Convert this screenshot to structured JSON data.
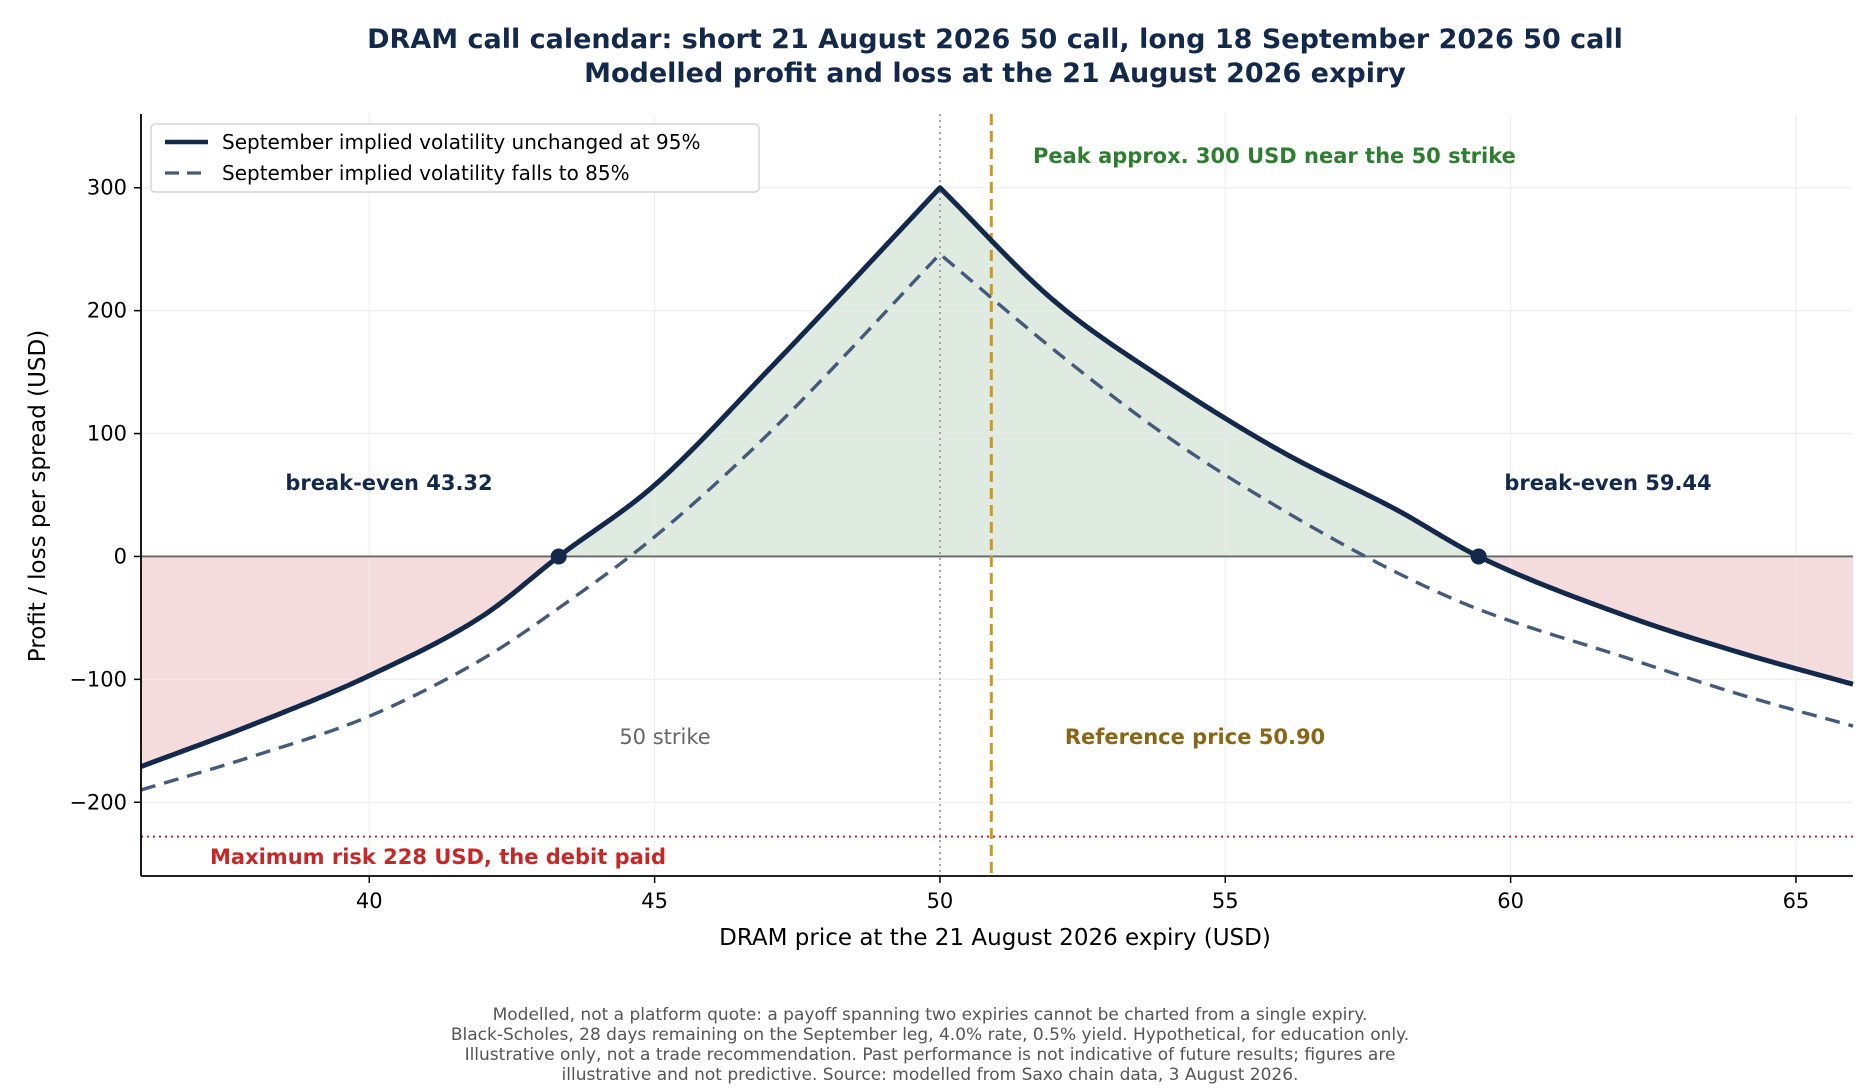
{
  "chart_data": {
    "type": "line",
    "title_lines": [
      "DRAM call calendar: short 21 August 2026 50 call, long 18 September 2026 50 call",
      "Modelled profit and loss at the 21 August 2026 expiry"
    ],
    "xlabel": "DRAM price at the 21 August 2026 expiry (USD)",
    "ylabel": "Profit / loss per spread (USD)",
    "xlim": [
      36,
      66
    ],
    "ylim": [
      -260,
      360
    ],
    "x_ticks": [
      40,
      45,
      50,
      55,
      60,
      65
    ],
    "y_ticks": [
      -200,
      -100,
      0,
      100,
      200,
      300
    ],
    "y_tick_labels": [
      "−200",
      "−100",
      "0",
      "100",
      "200",
      "300"
    ],
    "grid": true,
    "legend_position": "top-left",
    "series": [
      {
        "name": "September implied volatility unchanged at 95%",
        "style": "solid",
        "color": "#13294b",
        "x": [
          36,
          38,
          40,
          42,
          43.32,
          45,
          47,
          50,
          52,
          54,
          56,
          58,
          59.44,
          62,
          64,
          66
        ],
        "y": [
          -171,
          -136,
          -97,
          -48,
          0,
          58,
          152,
          300,
          208,
          142,
          85,
          38,
          0,
          -48,
          -78,
          -104
        ]
      },
      {
        "name": "September implied volatility falls to 85%",
        "style": "dashed",
        "color": "#435a7b",
        "x": [
          36,
          38,
          40,
          42,
          43.32,
          45,
          47,
          50,
          52,
          54,
          56,
          58,
          59.44,
          62,
          64,
          66
        ],
        "y": [
          -190,
          -162,
          -130,
          -83,
          -42,
          16,
          100,
          246,
          168,
          97,
          38,
          -13,
          -43,
          -82,
          -112,
          -138
        ]
      }
    ],
    "break_evens": [
      {
        "x": 43.32,
        "label": "break-even 43.32"
      },
      {
        "x": 59.44,
        "label": "break-even 59.44"
      }
    ],
    "strike": {
      "x": 50,
      "label": "50 strike"
    },
    "reference_price": {
      "x": 50.9,
      "label": "Reference price 50.90"
    },
    "peak_annotation": "Peak approx. 300 USD near the 50 strike",
    "max_risk": {
      "y": -228,
      "label": "Maximum risk 228 USD, the debit paid"
    },
    "footnote_lines": [
      "Modelled, not a platform quote: a payoff spanning two expiries cannot be charted from a single expiry.",
      "Black-Scholes, 28 days remaining on the September leg, 4.0% rate, 0.5% yield. Hypothetical, for education only.",
      "Illustrative only, not a trade recommendation. Past performance is not indicative of future results; figures are",
      "illustrative and not predictive. Source: modelled from Saxo chain data, 3 August 2026."
    ],
    "colors": {
      "profit_fill": "#dfeae0",
      "loss_fill": "#f5dcdc",
      "peak_text": "#2e7d32",
      "reference": "#c89a22",
      "reference_text": "#8a6516",
      "risk": "#c62828",
      "strike_line": "#9e9e9e",
      "strike_text": "#666666",
      "break_even_text": "#13294b"
    }
  }
}
